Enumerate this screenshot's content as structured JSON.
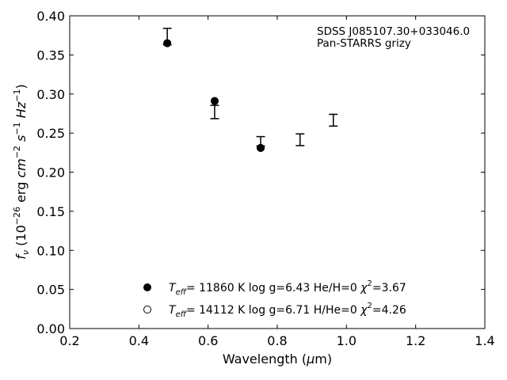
{
  "chart_data": {
    "type": "scatter",
    "xlim": [
      0.2,
      1.4
    ],
    "ylim": [
      0.0,
      0.4
    ],
    "x_ticks": [
      0.2,
      0.4,
      0.6,
      0.8,
      1.0,
      1.2,
      1.4
    ],
    "y_ticks": [
      0.0,
      0.05,
      0.1,
      0.15,
      0.2,
      0.25,
      0.3,
      0.35,
      0.4
    ],
    "x_tick_labels": [
      "0.2",
      "0.4",
      "0.6",
      "0.8",
      "1.0",
      "1.2",
      "1.4"
    ],
    "y_tick_labels": [
      "0.00",
      "0.05",
      "0.10",
      "0.15",
      "0.20",
      "0.25",
      "0.30",
      "0.35",
      "0.40"
    ],
    "xlabel": {
      "prefix": "Wavelength (",
      "greek": "μ",
      "suffix": "m)"
    },
    "ylabel": {
      "f": "f",
      "nu": "ν",
      "open": " (10",
      "exp1": "−26",
      "mid": " erg ",
      "cm": "cm",
      "exp2": "−2",
      "sp": " ",
      "s": "s",
      "exp3": "−1",
      "sp2": " ",
      "hz": "Hz",
      "exp4": "−1",
      "close": ")"
    },
    "annotation": [
      "SDSS J085107.30+033046.0",
      "Pan-STARRS grizy"
    ],
    "observed": {
      "x": [
        0.482,
        0.619,
        0.752,
        0.866,
        0.962
      ],
      "y": [
        0.3735,
        0.277,
        0.2395,
        0.2415,
        0.2665
      ],
      "yerr": [
        0.0105,
        0.0085,
        0.006,
        0.0075,
        0.0075
      ]
    },
    "series": [
      {
        "name": "Teff=11860 K  log g=6.43  He/H=0  chi2=3.67",
        "marker": "filled-circle",
        "x": [
          0.482,
          0.619,
          0.752
        ],
        "y": [
          0.365,
          0.291,
          0.231
        ]
      },
      {
        "name": "Teff=14112 K  log g=6.71  H/He=0  chi2=4.26",
        "marker": "open-circle",
        "x": [
          0.482,
          0.619,
          0.752
        ],
        "y": [
          0.365,
          0.291,
          0.231
        ]
      }
    ],
    "legend": [
      {
        "marker": "filled-circle",
        "t": "T",
        "eff": "eff",
        "rest": "= 11860 K  log g=6.43  He/H=0  ",
        "chi": "χ",
        "sq": "2",
        "chi_val": "=3.67"
      },
      {
        "marker": "open-circle",
        "t": "T",
        "eff": "eff",
        "rest": "= 14112 K  log g=6.71  H/He=0  ",
        "chi": "χ",
        "sq": "2",
        "chi_val": "=4.26"
      }
    ],
    "legend_position": "lower-center",
    "grid": false,
    "colors": {
      "marker": "#000000",
      "axes": "#000000",
      "background": "#ffffff"
    }
  }
}
